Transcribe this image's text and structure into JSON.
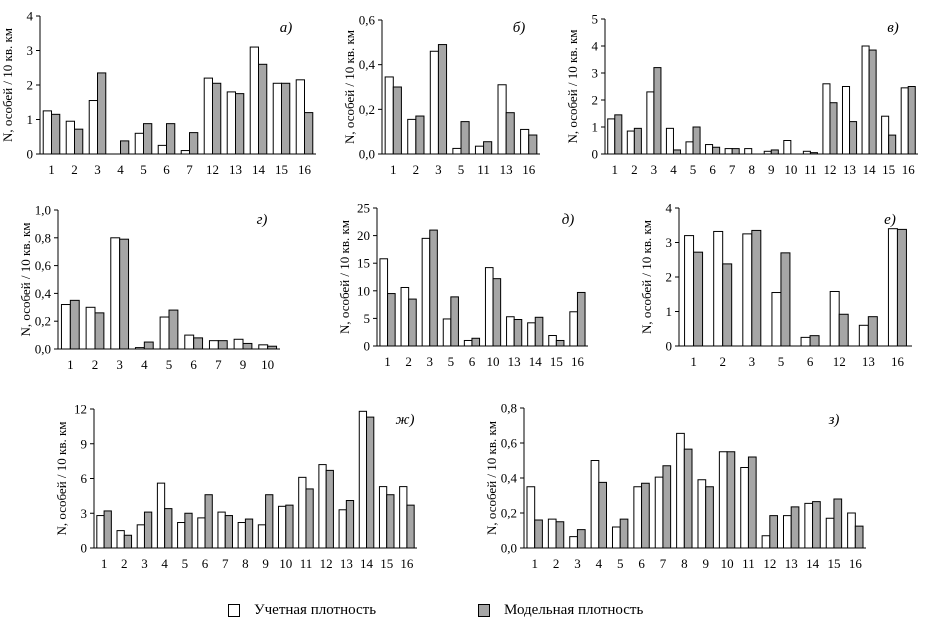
{
  "legend": {
    "observed": "Учетная плотность",
    "model": "Модельная плотность",
    "observed_color": "#ffffff",
    "model_color": "#a6a6a6"
  },
  "chart_data": [
    {
      "type": "bar",
      "panel_label": "а)",
      "ylabel": "N, особей / 10 кв. км",
      "ylim": [
        0,
        4
      ],
      "yticks": [
        "0",
        "1",
        "2",
        "3",
        "4"
      ],
      "categories": [
        "1",
        "2",
        "3",
        "4",
        "5",
        "6",
        "7",
        "12",
        "13",
        "14",
        "15",
        "16"
      ],
      "series": [
        {
          "name": "Учетная плотность",
          "values": [
            1.25,
            0.95,
            1.55,
            0,
            0.6,
            0.25,
            0.1,
            2.2,
            1.8,
            3.1,
            2.05,
            2.15
          ]
        },
        {
          "name": "Модельная плотность",
          "values": [
            1.15,
            0.72,
            2.35,
            0.38,
            0.88,
            0.88,
            0.62,
            2.05,
            1.75,
            2.6,
            2.05,
            1.2
          ]
        }
      ]
    },
    {
      "type": "bar",
      "panel_label": "б)",
      "ylabel": "N, особей / 10 кв. км",
      "ylim": [
        0,
        0.6
      ],
      "yticks": [
        "0,0",
        "0,2",
        "0,4",
        "0,6"
      ],
      "categories": [
        "1",
        "2",
        "3",
        "5",
        "11",
        "13",
        "16"
      ],
      "series": [
        {
          "name": "Учетная плотность",
          "values": [
            0.345,
            0.155,
            0.46,
            0.025,
            0.035,
            0.31,
            0.11
          ]
        },
        {
          "name": "Модельная плотность",
          "values": [
            0.3,
            0.17,
            0.49,
            0.145,
            0.055,
            0.185,
            0.085
          ]
        }
      ]
    },
    {
      "type": "bar",
      "panel_label": "в)",
      "ylabel": "N, особей / 10 кв. км",
      "ylim": [
        0,
        5
      ],
      "yticks": [
        "0",
        "1",
        "2",
        "3",
        "4",
        "5"
      ],
      "categories": [
        "1",
        "2",
        "3",
        "4",
        "5",
        "6",
        "7",
        "8",
        "9",
        "10",
        "11",
        "12",
        "13",
        "14",
        "15",
        "16"
      ],
      "series": [
        {
          "name": "Учетная плотность",
          "values": [
            1.3,
            0.85,
            2.3,
            0.95,
            0.45,
            0.35,
            0.2,
            0.2,
            0.1,
            0.5,
            0.1,
            2.6,
            2.5,
            4.0,
            1.4,
            2.45
          ]
        },
        {
          "name": "Модельная плотность",
          "values": [
            1.45,
            0.95,
            3.2,
            0.15,
            1.0,
            0.25,
            0.2,
            0.0,
            0.15,
            0.0,
            0.05,
            1.9,
            1.2,
            3.85,
            0.7,
            2.5
          ]
        }
      ]
    },
    {
      "type": "bar",
      "panel_label": "г)",
      "ylabel": "N, особей / 10 кв. км",
      "ylim": [
        0,
        1
      ],
      "yticks": [
        "0,0",
        "0,2",
        "0,4",
        "0,6",
        "0,8",
        "1,0"
      ],
      "categories": [
        "1",
        "2",
        "3",
        "4",
        "5",
        "6",
        "7",
        "9",
        "10"
      ],
      "series": [
        {
          "name": "Учетная плотность",
          "values": [
            0.32,
            0.3,
            0.8,
            0.01,
            0.23,
            0.1,
            0.06,
            0.07,
            0.03
          ]
        },
        {
          "name": "Модельная плотность",
          "values": [
            0.35,
            0.26,
            0.79,
            0.05,
            0.28,
            0.08,
            0.06,
            0.04,
            0.02
          ]
        }
      ]
    },
    {
      "type": "bar",
      "panel_label": "д)",
      "ylabel": "N, особей / 10 кв. км",
      "ylim": [
        0,
        25
      ],
      "yticks": [
        "0",
        "5",
        "10",
        "15",
        "20",
        "25"
      ],
      "categories": [
        "1",
        "2",
        "3",
        "5",
        "6",
        "10",
        "13",
        "14",
        "15",
        "16"
      ],
      "series": [
        {
          "name": "Учетная плотность",
          "values": [
            15.8,
            10.6,
            19.5,
            4.9,
            1.0,
            14.2,
            5.3,
            4.2,
            1.9,
            6.2
          ]
        },
        {
          "name": "Модельная плотность",
          "values": [
            9.5,
            8.5,
            21.0,
            8.9,
            1.4,
            12.2,
            4.8,
            5.2,
            1.0,
            9.7
          ]
        }
      ]
    },
    {
      "type": "bar",
      "panel_label": "е)",
      "ylabel": "N, особей / 10 кв. км",
      "ylim": [
        0,
        4
      ],
      "yticks": [
        "0",
        "1",
        "2",
        "3",
        "4"
      ],
      "categories": [
        "1",
        "2",
        "3",
        "5",
        "6",
        "12",
        "13",
        "16"
      ],
      "series": [
        {
          "name": "Учетная плотность",
          "values": [
            3.2,
            3.32,
            3.25,
            1.55,
            0.25,
            1.58,
            0.6,
            3.4
          ]
        },
        {
          "name": "Модельная плотность",
          "values": [
            2.72,
            2.38,
            3.35,
            2.7,
            0.3,
            0.92,
            0.85,
            3.38
          ]
        }
      ]
    },
    {
      "type": "bar",
      "panel_label": "ж)",
      "ylabel": "N, особей / 10 кв. км",
      "ylim": [
        0,
        12
      ],
      "yticks": [
        "0",
        "3",
        "6",
        "9",
        "12"
      ],
      "categories": [
        "1",
        "2",
        "3",
        "4",
        "5",
        "6",
        "7",
        "8",
        "9",
        "10",
        "11",
        "12",
        "13",
        "14",
        "15",
        "16"
      ],
      "series": [
        {
          "name": "Учетная плотность",
          "values": [
            2.8,
            1.5,
            2.0,
            5.6,
            2.2,
            2.6,
            3.1,
            2.2,
            2.0,
            3.6,
            6.1,
            7.2,
            3.3,
            11.8,
            5.3,
            5.3
          ]
        },
        {
          "name": "Модельная плотность",
          "values": [
            3.2,
            1.1,
            3.1,
            3.4,
            3.0,
            4.6,
            2.8,
            2.5,
            4.6,
            3.7,
            5.1,
            6.7,
            4.1,
            11.3,
            4.6,
            3.7
          ]
        }
      ]
    },
    {
      "type": "bar",
      "panel_label": "з)",
      "ylabel": "N, особей / 10 кв. км",
      "ylim": [
        0,
        0.8
      ],
      "yticks": [
        "0,0",
        "0,2",
        "0,4",
        "0,6",
        "0,8"
      ],
      "categories": [
        "1",
        "2",
        "3",
        "4",
        "5",
        "6",
        "7",
        "8",
        "9",
        "10",
        "11",
        "12",
        "13",
        "14",
        "15",
        "16"
      ],
      "series": [
        {
          "name": "Учетная плотность",
          "values": [
            0.35,
            0.165,
            0.065,
            0.5,
            0.12,
            0.35,
            0.405,
            0.655,
            0.39,
            0.55,
            0.46,
            0.07,
            0.185,
            0.255,
            0.17,
            0.2
          ]
        },
        {
          "name": "Модельная плотность",
          "values": [
            0.16,
            0.15,
            0.105,
            0.375,
            0.165,
            0.37,
            0.47,
            0.565,
            0.35,
            0.55,
            0.52,
            0.185,
            0.235,
            0.265,
            0.28,
            0.125
          ]
        }
      ]
    }
  ]
}
